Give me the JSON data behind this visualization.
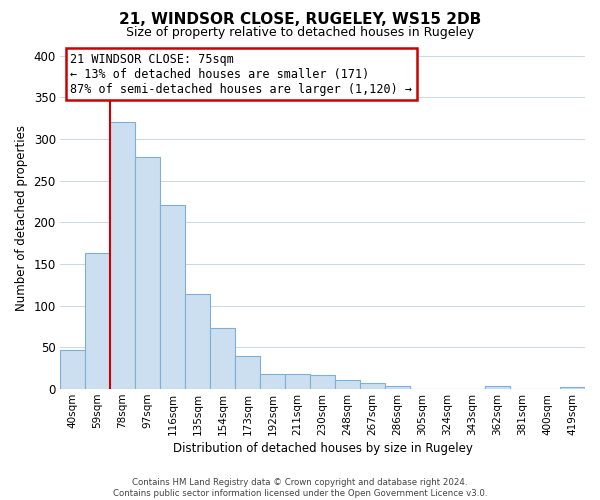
{
  "title": "21, WINDSOR CLOSE, RUGELEY, WS15 2DB",
  "subtitle": "Size of property relative to detached houses in Rugeley",
  "xlabel": "Distribution of detached houses by size in Rugeley",
  "ylabel": "Number of detached properties",
  "bar_labels": [
    "40sqm",
    "59sqm",
    "78sqm",
    "97sqm",
    "116sqm",
    "135sqm",
    "154sqm",
    "173sqm",
    "192sqm",
    "211sqm",
    "230sqm",
    "248sqm",
    "267sqm",
    "286sqm",
    "305sqm",
    "324sqm",
    "343sqm",
    "362sqm",
    "381sqm",
    "400sqm",
    "419sqm"
  ],
  "bar_heights": [
    47,
    163,
    321,
    279,
    221,
    114,
    73,
    39,
    18,
    18,
    17,
    10,
    7,
    3,
    0,
    0,
    0,
    3,
    0,
    0,
    2
  ],
  "bar_face_color": "#ccdff0",
  "bar_edge_color": "#7eb0d5",
  "property_bar_index": 2,
  "annotation_line1": "21 WINDSOR CLOSE: 75sqm",
  "annotation_line2": "← 13% of detached houses are smaller (171)",
  "annotation_line3": "87% of semi-detached houses are larger (1,120) →",
  "annotation_box_color": "#ffffff",
  "annotation_border_color": "#cc0000",
  "vline_color": "#cc0000",
  "ylim": [
    0,
    410
  ],
  "yticks": [
    0,
    50,
    100,
    150,
    200,
    250,
    300,
    350,
    400
  ],
  "footer_text": "Contains HM Land Registry data © Crown copyright and database right 2024.\nContains public sector information licensed under the Open Government Licence v3.0.",
  "background_color": "#ffffff",
  "grid_color": "#c8d8e8"
}
